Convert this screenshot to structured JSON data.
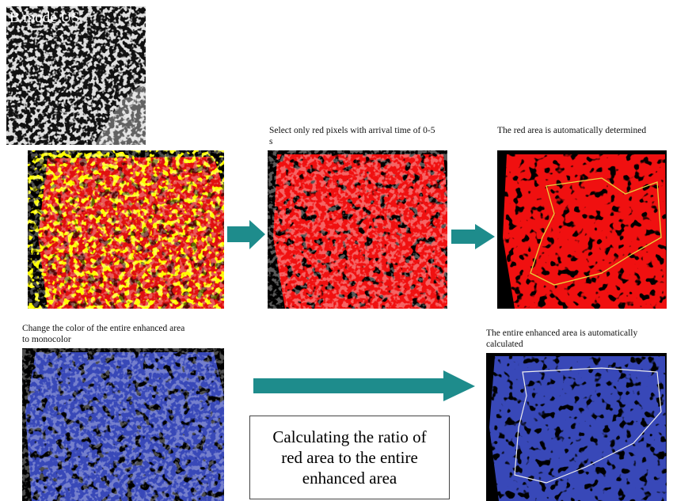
{
  "header": {
    "title": "B mode US"
  },
  "steps": [
    {
      "caption": "Select only red pixels with arrival time of 0-5 s"
    },
    {
      "caption": "The red area is automatically determined"
    },
    {
      "caption": "Change the color of the entire enhanced area to monocolor"
    },
    {
      "caption": "The entire enhanced area is automatically calculated"
    }
  ],
  "result_box": {
    "text": "Calculating the ratio of red area to the entire enhanced area"
  }
}
